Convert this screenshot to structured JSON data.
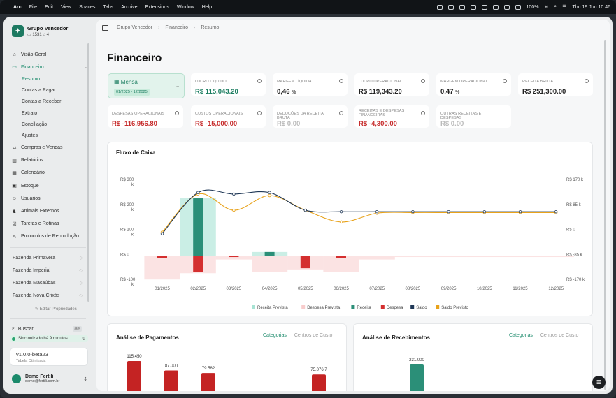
{
  "menubar": {
    "items": [
      "Arc",
      "File",
      "Edit",
      "View",
      "Spaces",
      "Tabs",
      "Archive",
      "Extensions",
      "Window",
      "Help"
    ],
    "battery": "100%",
    "clock": "Thu 19 Jun 10:46"
  },
  "org": {
    "name": "Grupo Vencedor",
    "id": "1531",
    "count": "4"
  },
  "nav": {
    "visao_geral": "Visão Geral",
    "financeiro": "Financeiro",
    "subs": [
      "Resumo",
      "Contas a Pagar",
      "Contas a Receber",
      "Extrato",
      "Conciliação",
      "Ajustes"
    ],
    "after": [
      "Compras e Vendas",
      "Relatórios",
      "Calendário",
      "Estoque",
      "Usuários",
      "Animais Externos",
      "Tarefas e Rotinas",
      "Protocolos de Reprodução"
    ]
  },
  "farms": [
    "Fazenda Primavera",
    "Fazenda Imperial",
    "Fazenda Macaúbas",
    "Fazenda Nova Crixás"
  ],
  "edit_props": "Editar Propriedades",
  "search": {
    "label": "Buscar",
    "kbd": "⌘K"
  },
  "sync": "Sincronizado há 9 minutos",
  "version": {
    "label": "v1.0.0-beta23",
    "sub": "Tabela Otimizada"
  },
  "user": {
    "name": "Demo Fertili",
    "email": "demo@fertili.com.br"
  },
  "breadcrumb": [
    "Grupo Vencedor",
    "Financeiro",
    "Resumo"
  ],
  "page_title": "Financeiro",
  "period": {
    "label": "Mensal",
    "range": "01/2025 - 12/2025"
  },
  "cards": [
    {
      "label": "LUCRO LÍQUIDO",
      "value": "R$ 115,043.20",
      "tone": "green"
    },
    {
      "label": "MARGEM LÍQUIDA",
      "value": "0,46",
      "unit": "%",
      "tone": "dark"
    },
    {
      "label": "LUCRO OPERACIONAL",
      "value": "R$ 119,343.20",
      "tone": "dark"
    },
    {
      "label": "MARGEM OPERACIONAL",
      "value": "0,47",
      "unit": "%",
      "tone": "dark"
    },
    {
      "label": "RECEITA BRUTA",
      "value": "R$ 251,300.00",
      "tone": "dark"
    },
    {
      "label": "DESPESAS OPERACIONAIS",
      "value": "R$ -116,956.80",
      "tone": "red"
    },
    {
      "label": "CUSTOS OPERACIONAIS",
      "value": "R$ -15,000.00",
      "tone": "red"
    },
    {
      "label": "DEDUÇÕES DA RECEITA BRUTA",
      "value": "R$ 0.00",
      "tone": "gray"
    },
    {
      "label": "RECEITAS E DESPESAS FINANCEIRAS",
      "value": "R$ -4,300.00",
      "tone": "red"
    },
    {
      "label": "OUTRAS RECEITAS E DESPESAS",
      "value": "R$ 0.00",
      "tone": "gray"
    }
  ],
  "flux_title": "Fluxo de Caixa",
  "chart_data": [
    {
      "type": "bar",
      "title": "Fluxo de Caixa",
      "categories": [
        "01/2025",
        "02/2025",
        "03/2025",
        "04/2025",
        "05/2025",
        "06/2025",
        "07/2025",
        "08/2025",
        "09/2025",
        "10/2025",
        "11/2025",
        "12/2025"
      ],
      "y_ticks_left": [
        "R$ 300 k",
        "R$ 200 k",
        "R$ 100 k",
        "R$ 0",
        "R$ -100 k"
      ],
      "y_ticks_right": [
        "R$ 170 k",
        "R$ 85 k",
        "R$ 0",
        "R$ -85 k",
        "R$ -170 k"
      ],
      "ylim_left": [
        -100000,
        300000
      ],
      "ylim_right": [
        -170000,
        170000
      ],
      "series": [
        {
          "name": "Receita Prevista",
          "kind": "bar",
          "color": "#a7e3d3",
          "values": [
            0,
            230000,
            0,
            15000,
            0,
            0,
            0,
            0,
            0,
            0,
            0,
            0
          ]
        },
        {
          "name": "Despesa Prevista",
          "kind": "bar",
          "color": "#f8cccc",
          "values": [
            -95000,
            -70000,
            -15000,
            -65000,
            -55000,
            -65000,
            -15000,
            -5000,
            -5000,
            -5000,
            -5000,
            -5000
          ]
        },
        {
          "name": "Receita",
          "kind": "bar",
          "color": "#2b8f78",
          "values": [
            0,
            230000,
            0,
            15000,
            0,
            0,
            0,
            0,
            0,
            0,
            0,
            0
          ]
        },
        {
          "name": "Despesa",
          "kind": "bar",
          "color": "#d42f2f",
          "values": [
            -10000,
            -65000,
            -5000,
            0,
            -50000,
            -10000,
            0,
            0,
            0,
            0,
            0,
            0
          ]
        },
        {
          "name": "Saldo",
          "kind": "line",
          "color": "#1f3756",
          "axis": "right",
          "values": [
            -10000,
            130000,
            125000,
            130000,
            70000,
            65000,
            65000,
            65000,
            65000,
            65000,
            65000,
            65000
          ]
        },
        {
          "name": "Saldo Previsto",
          "kind": "line",
          "color": "#e8a21a",
          "axis": "right",
          "values": [
            -5000,
            125000,
            70000,
            120000,
            70000,
            30000,
            60000,
            62000,
            62000,
            62000,
            62000,
            62000
          ]
        }
      ]
    },
    {
      "type": "bar",
      "title": "Análise de Pagamentos",
      "categories": [
        "",
        "",
        "",
        "",
        "",
        ""
      ],
      "values": [
        115450,
        87000,
        79582,
        0,
        0,
        75076.7
      ],
      "data_labels": [
        "115.450",
        "87.000",
        "79.582",
        "",
        "",
        "75.076,7"
      ]
    },
    {
      "type": "bar",
      "title": "Análise de Recebimentos",
      "categories": [
        ""
      ],
      "values": [
        231000
      ],
      "data_labels": [
        "231.000"
      ]
    }
  ],
  "payments": {
    "title": "Análise de Pagamentos",
    "tabs": [
      "Categorias",
      "Centros de Custo"
    ]
  },
  "receipts": {
    "title": "Análise de Recebimentos",
    "tabs": [
      "Categorias",
      "Centros de Custo"
    ]
  }
}
